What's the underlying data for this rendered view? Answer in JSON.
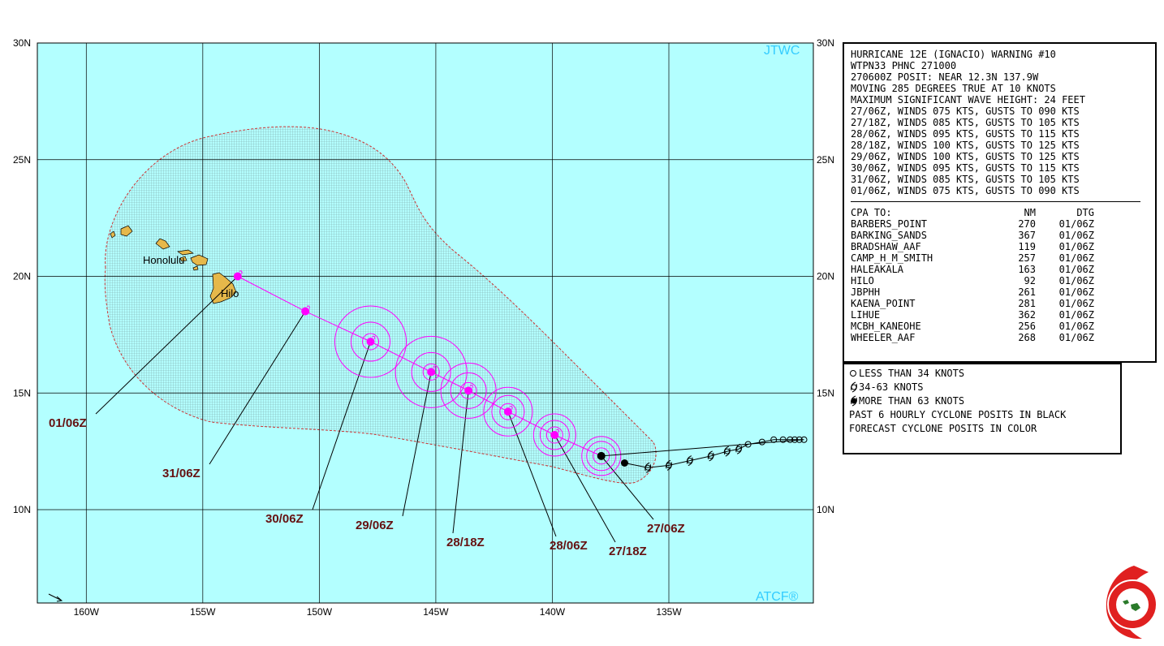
{
  "map": {
    "corner_top_right": "JTWC",
    "corner_bottom_right": "ATCF®",
    "lat_labels": [
      "30N",
      "25N",
      "20N",
      "15N",
      "10N"
    ],
    "lon_labels": [
      "160W",
      "155W",
      "150W",
      "145W",
      "140W",
      "135W"
    ],
    "places": {
      "honolulu": "Honolulu",
      "hilo": "Hilo"
    },
    "colors": {
      "ocean": "#b3ffff",
      "land": "#e6b84a",
      "forecast_track": "#ff00ff",
      "past_track": "#000000",
      "cone_outline": "#cc3333",
      "label_color": "#661111"
    }
  },
  "track": {
    "past_positions": [
      {
        "lat": 12.0,
        "lon": -136.9
      },
      {
        "lat": 11.8,
        "lon": -135.9
      },
      {
        "lat": 11.9,
        "lon": -135.0
      },
      {
        "lat": 12.1,
        "lon": -134.1
      },
      {
        "lat": 12.3,
        "lon": -133.2
      },
      {
        "lat": 12.5,
        "lon": -132.5
      },
      {
        "lat": 12.6,
        "lon": -132.0
      },
      {
        "lat": 12.8,
        "lon": -131.6
      },
      {
        "lat": 12.9,
        "lon": -131.0
      },
      {
        "lat": 13.0,
        "lon": -130.5
      },
      {
        "lat": 13.0,
        "lon": -130.1
      },
      {
        "lat": 13.0,
        "lon": -129.8
      },
      {
        "lat": 13.0,
        "lon": -129.6
      },
      {
        "lat": 13.0,
        "lon": -129.4
      },
      {
        "lat": 13.0,
        "lon": -129.2
      }
    ],
    "current_position": {
      "lat": 12.3,
      "lon": -137.9
    },
    "forecast_positions": [
      {
        "dtg": "27/06Z",
        "lat": 12.3,
        "lon": -137.9
      },
      {
        "dtg": "27/18Z",
        "lat": 13.2,
        "lon": -139.9
      },
      {
        "dtg": "28/06Z",
        "lat": 14.2,
        "lon": -141.9
      },
      {
        "dtg": "28/18Z",
        "lat": 15.1,
        "lon": -143.6
      },
      {
        "dtg": "29/06Z",
        "lat": 15.9,
        "lon": -145.2
      },
      {
        "dtg": "30/06Z",
        "lat": 17.2,
        "lon": -147.8
      },
      {
        "dtg": "31/06Z",
        "lat": 18.5,
        "lon": -150.6
      },
      {
        "dtg": "01/06Z",
        "lat": 20.0,
        "lon": -153.5
      }
    ]
  },
  "warning": {
    "title": "HURRICANE 12E (IGNACIO) WARNING #10",
    "header": "WTPN33 PHNC 271000",
    "posit": "270600Z POSIT: NEAR 12.3N 137.9W",
    "moving": "MOVING 285 DEGREES TRUE AT 10 KNOTS",
    "wave": "MAXIMUM SIGNIFICANT WAVE HEIGHT: 24 FEET",
    "winds": [
      "27/06Z, WINDS 075 KTS, GUSTS TO 090 KTS",
      "27/18Z, WINDS 085 KTS, GUSTS TO 105 KTS",
      "28/06Z, WINDS 095 KTS, GUSTS TO 115 KTS",
      "28/18Z, WINDS 100 KTS, GUSTS TO 125 KTS",
      "29/06Z, WINDS 100 KTS, GUSTS TO 125 KTS",
      "30/06Z, WINDS 095 KTS, GUSTS TO 115 KTS",
      "31/06Z, WINDS 085 KTS, GUSTS TO 105 KTS",
      "01/06Z, WINDS 075 KTS, GUSTS TO 090 KTS"
    ],
    "cpa_header": {
      "name": "CPA TO:",
      "nm": "NM",
      "dtg": "DTG"
    },
    "cpa": [
      {
        "name": "BARBERS_POINT",
        "nm": "270",
        "dtg": "01/06Z"
      },
      {
        "name": "BARKING_SANDS",
        "nm": "367",
        "dtg": "01/06Z"
      },
      {
        "name": "BRADSHAW_AAF",
        "nm": "119",
        "dtg": "01/06Z"
      },
      {
        "name": "CAMP_H_M_SMITH",
        "nm": "257",
        "dtg": "01/06Z"
      },
      {
        "name": "HALEAKALA",
        "nm": "163",
        "dtg": "01/06Z"
      },
      {
        "name": "HILO",
        "nm": "92",
        "dtg": "01/06Z"
      },
      {
        "name": "JBPHH",
        "nm": "261",
        "dtg": "01/06Z"
      },
      {
        "name": "KAENA_POINT",
        "nm": "281",
        "dtg": "01/06Z"
      },
      {
        "name": "LIHUE",
        "nm": "362",
        "dtg": "01/06Z"
      },
      {
        "name": "MCBH_KANEOHE",
        "nm": "256",
        "dtg": "01/06Z"
      },
      {
        "name": "WHEELER_AAF",
        "nm": "268",
        "dtg": "01/06Z"
      }
    ]
  },
  "legend": {
    "less_34": "LESS THAN 34 KNOTS",
    "k34_63": "34-63 KNOTS",
    "more_63": "MORE THAN 63 KNOTS",
    "past_note": "PAST 6 HOURLY CYCLONE POSITS IN BLACK",
    "forecast_note": "FORECAST CYCLONE POSITS IN COLOR"
  }
}
